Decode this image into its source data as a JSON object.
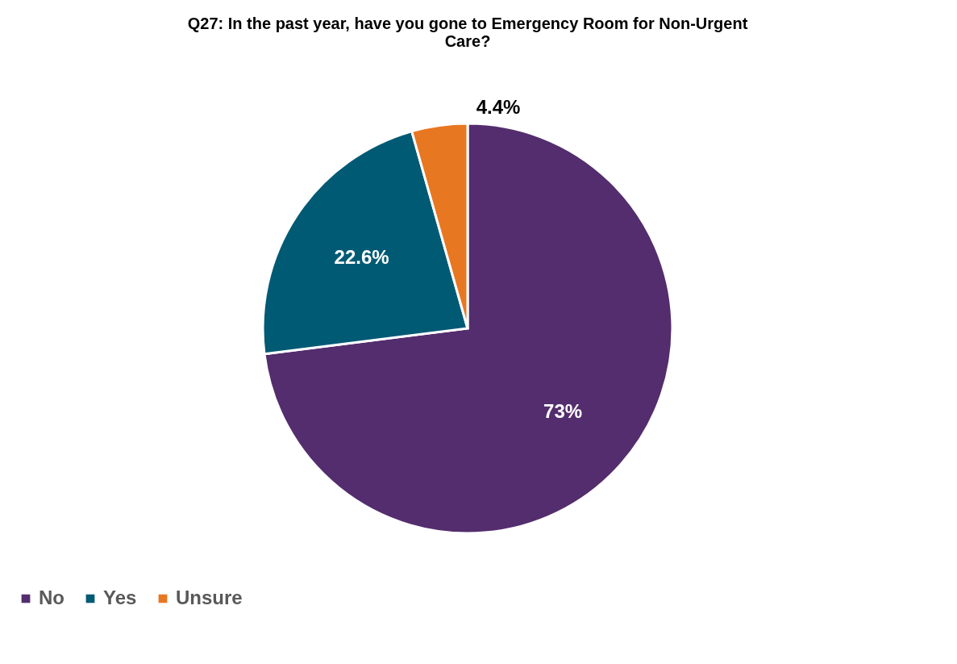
{
  "chart_data": {
    "type": "pie",
    "title": "Q27: In the past year, have you gone to Emergency Room for Non-Urgent Care?",
    "categories": [
      "No",
      "Yes",
      "Unsure"
    ],
    "values": [
      73,
      22.6,
      4.4
    ],
    "colors": [
      "#532d6d",
      "#005a74",
      "#e87722"
    ],
    "value_labels": [
      "73%",
      "22.6%",
      "4.4%"
    ],
    "legend": "bottom"
  }
}
